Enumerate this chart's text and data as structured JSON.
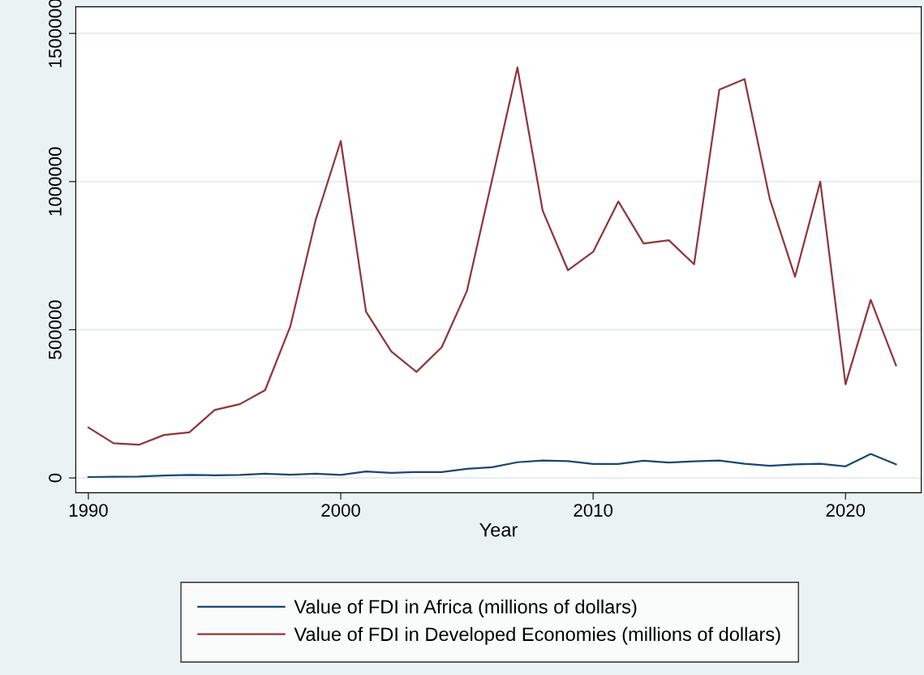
{
  "chart_data": {
    "type": "line",
    "xlabel": "Year",
    "x": [
      1990,
      1991,
      1992,
      1993,
      1994,
      1995,
      1996,
      1997,
      1998,
      1999,
      2000,
      2001,
      2002,
      2003,
      2004,
      2005,
      2006,
      2007,
      2008,
      2009,
      2010,
      2011,
      2012,
      2013,
      2014,
      2015,
      2016,
      2017,
      2018,
      2019,
      2020,
      2021,
      2022
    ],
    "series": [
      {
        "name": "Value of FDI in Africa (millions of dollars)",
        "color": "#1a476f",
        "values": [
          3000,
          4000,
          5000,
          8000,
          10000,
          9000,
          10000,
          14000,
          11000,
          14000,
          10000,
          22000,
          17000,
          20000,
          20000,
          31000,
          36000,
          53000,
          59000,
          57000,
          47000,
          47000,
          58000,
          52000,
          56000,
          59000,
          48000,
          41000,
          46000,
          48000,
          39000,
          81000,
          46000
        ]
      },
      {
        "name": "Value of FDI in Developed Economies (millions of dollars)",
        "color": "#90353b",
        "values": [
          170000,
          117000,
          112000,
          145000,
          154000,
          229000,
          249000,
          296000,
          511000,
          869000,
          1137000,
          561000,
          427000,
          358000,
          441000,
          631000,
          1008000,
          1385000,
          902000,
          701000,
          763000,
          933000,
          791000,
          802000,
          721000,
          1310000,
          1346000,
          941000,
          679000,
          1000000,
          316000,
          601000,
          380000
        ]
      }
    ],
    "xlim": [
      1989.5,
      2023
    ],
    "xticks": [
      1990,
      2000,
      2010,
      2020
    ],
    "ylim": [
      -50000,
      1590000
    ],
    "yticks": [
      0,
      500000,
      1000000,
      1500000
    ],
    "grid": "y",
    "legend": "bottom",
    "marker": "none",
    "line_style": "solid"
  }
}
